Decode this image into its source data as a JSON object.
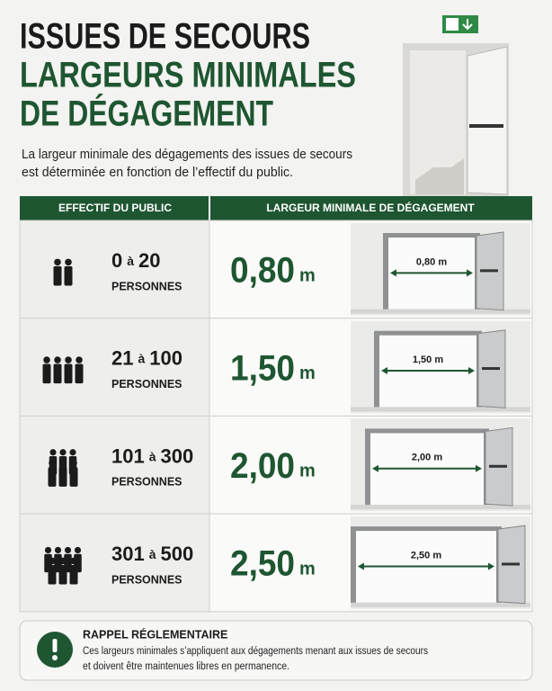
{
  "header": {
    "title_lines": [
      "ISSUES DE SECOURS",
      "LARGEURS MINIMALES",
      "DE DÉGAGEMENT"
    ],
    "intro_lines": [
      "La largeur minimale des dégagements des issues de secours",
      "est déterminée en fonction de l’effectif du public."
    ]
  },
  "table": {
    "headers": [
      "EFFECTIF DU PUBLIC",
      "LARGEUR MINIMALE DE DÉGAGEMENT"
    ],
    "rows": [
      {
        "from": "0",
        "sep": "à",
        "to": "20",
        "people": "PERSONNES",
        "width": "0,80",
        "width_unit": "m",
        "door_label": "0,80 m"
      },
      {
        "from": "21",
        "sep": "à",
        "to": "100",
        "people": "PERSONNES",
        "width": "1,50",
        "width_unit": "m",
        "door_label": "1,50 m"
      },
      {
        "from": "101",
        "sep": "à",
        "to": "300",
        "people": "PERSONNES",
        "width": "2,00",
        "width_unit": "m",
        "door_label": "2,00 m"
      },
      {
        "from": "301",
        "sep": "à",
        "to": "500",
        "people": "PERSONNES",
        "width": "2,50",
        "width_unit": "m",
        "door_label": "2,50 m"
      }
    ]
  },
  "notice": {
    "title": "RAPPEL RÉGLEMENTAIRE",
    "lines": [
      "Ces largeurs minimales s’appliquent aux dégagements menant aux issues de secours",
      "et doivent être maintenues libres en permanence."
    ]
  }
}
